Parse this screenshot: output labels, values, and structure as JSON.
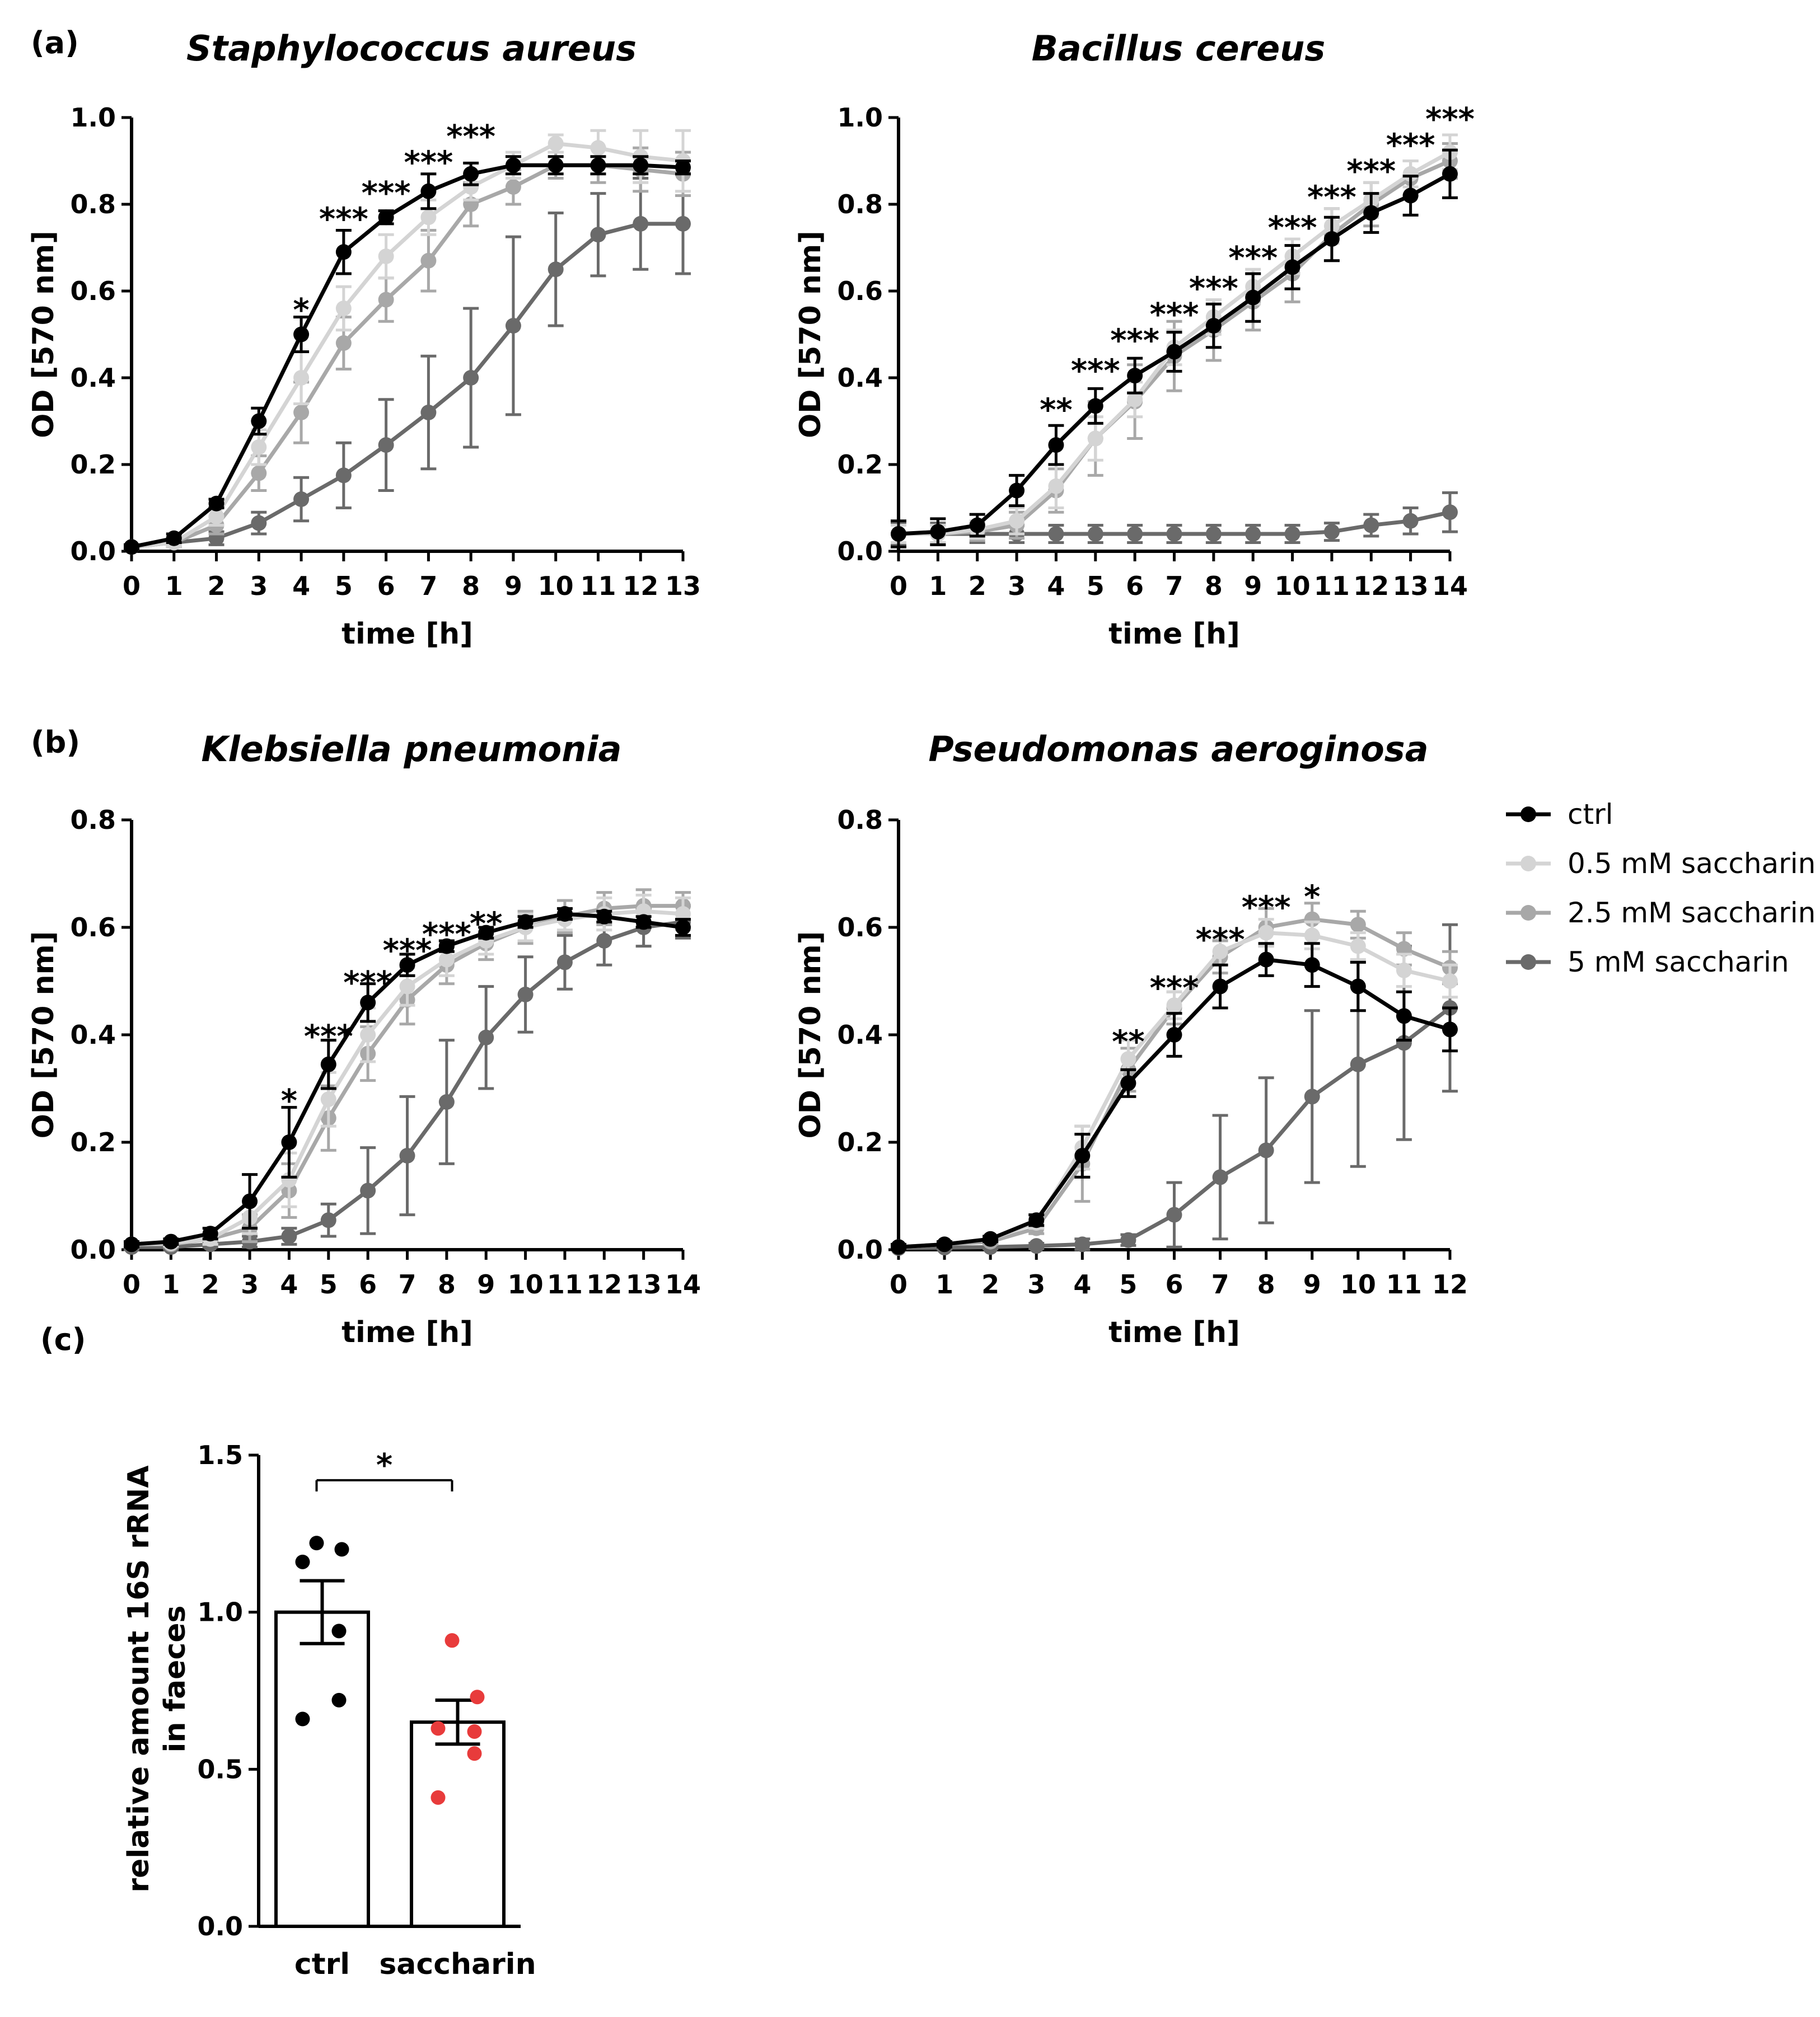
{
  "panel_labels": [
    "(a)",
    "(b)",
    "(c)"
  ],
  "colors": {
    "ctrl": "#000000",
    "s05": "#d4d4d4",
    "s25": "#a8a8a8",
    "s5": "#6a6a6a",
    "dots_saccharin": "#e83b3b"
  },
  "legend": {
    "items": [
      {
        "label": "ctrl",
        "series": "ctrl"
      },
      {
        "label": "0.5 mM saccharin",
        "series": "s05"
      },
      {
        "label": "2.5 mM saccharin",
        "series": "s25"
      },
      {
        "label": "5 mM saccharin",
        "series": "s5"
      }
    ]
  },
  "chart_data": [
    {
      "type": "line",
      "title": "Staphylococcus aureus",
      "xlabel": "time [h]",
      "ylabel": "OD [570 nm]",
      "xlim": [
        0,
        13
      ],
      "ylim": [
        0,
        1.0
      ],
      "xticks": [
        0,
        1,
        2,
        3,
        4,
        5,
        6,
        7,
        8,
        9,
        10,
        11,
        12,
        13
      ],
      "yticks": [
        0.0,
        0.2,
        0.4,
        0.6,
        0.8,
        1.0
      ],
      "ytick_labels": [
        "0.0",
        "0.2",
        "0.4",
        "0.6",
        "0.8",
        "1.0"
      ],
      "x": [
        0,
        1,
        2,
        3,
        4,
        5,
        6,
        7,
        8,
        9,
        10,
        11,
        12,
        13
      ],
      "series": [
        {
          "name": "ctrl",
          "key": "ctrl",
          "values": [
            0.01,
            0.03,
            0.11,
            0.3,
            0.5,
            0.69,
            0.77,
            0.83,
            0.87,
            0.89,
            0.89,
            0.89,
            0.89,
            0.885
          ],
          "err": [
            0.005,
            0.01,
            0.01,
            0.03,
            0.04,
            0.05,
            0.015,
            0.04,
            0.025,
            0.02,
            0.02,
            0.02,
            0.02,
            0.015
          ]
        },
        {
          "name": "0.5 mM saccharin",
          "key": "s05",
          "values": [
            0.01,
            0.02,
            0.08,
            0.24,
            0.4,
            0.56,
            0.68,
            0.77,
            0.84,
            0.89,
            0.94,
            0.93,
            0.91,
            0.9
          ],
          "err": [
            0.005,
            0.01,
            0.02,
            0.04,
            0.06,
            0.05,
            0.05,
            0.04,
            0.03,
            0.03,
            0.02,
            0.04,
            0.06,
            0.07
          ]
        },
        {
          "name": "2.5 mM saccharin",
          "key": "s25",
          "values": [
            0.01,
            0.02,
            0.06,
            0.18,
            0.32,
            0.48,
            0.58,
            0.67,
            0.8,
            0.84,
            0.89,
            0.89,
            0.88,
            0.87
          ],
          "err": [
            0.005,
            0.01,
            0.02,
            0.04,
            0.07,
            0.06,
            0.05,
            0.07,
            0.05,
            0.04,
            0.03,
            0.04,
            0.05,
            0.05
          ]
        },
        {
          "name": "5 mM saccharin",
          "key": "s5",
          "values": [
            0.01,
            0.02,
            0.03,
            0.065,
            0.12,
            0.175,
            0.245,
            0.32,
            0.4,
            0.52,
            0.65,
            0.73,
            0.755,
            0.755
          ],
          "err": [
            0.005,
            0.01,
            0.015,
            0.025,
            0.05,
            0.075,
            0.105,
            0.13,
            0.16,
            0.205,
            0.13,
            0.095,
            0.105,
            0.115
          ]
        }
      ],
      "annotations": [
        {
          "x": 4,
          "y": 0.56,
          "text": "*"
        },
        {
          "x": 5,
          "y": 0.77,
          "text": "***"
        },
        {
          "x": 6,
          "y": 0.83,
          "text": "***"
        },
        {
          "x": 7,
          "y": 0.9,
          "text": "***"
        },
        {
          "x": 8,
          "y": 0.96,
          "text": "***"
        }
      ]
    },
    {
      "type": "line",
      "title": "Bacillus cereus",
      "xlabel": "time [h]",
      "ylabel": "OD [570 nm]",
      "xlim": [
        0,
        14
      ],
      "ylim": [
        0,
        1.0
      ],
      "xticks": [
        0,
        1,
        2,
        3,
        4,
        5,
        6,
        7,
        8,
        9,
        10,
        11,
        12,
        13,
        14
      ],
      "yticks": [
        0.0,
        0.2,
        0.4,
        0.6,
        0.8,
        1.0
      ],
      "ytick_labels": [
        "0.0",
        "0.2",
        "0.4",
        "0.6",
        "0.8",
        "1.0"
      ],
      "x": [
        0,
        1,
        2,
        3,
        4,
        5,
        6,
        7,
        8,
        9,
        10,
        11,
        12,
        13,
        14
      ],
      "series": [
        {
          "name": "ctrl",
          "key": "ctrl",
          "values": [
            0.04,
            0.045,
            0.06,
            0.14,
            0.245,
            0.335,
            0.405,
            0.46,
            0.52,
            0.585,
            0.655,
            0.72,
            0.78,
            0.82,
            0.87
          ],
          "err": [
            0.03,
            0.03,
            0.025,
            0.035,
            0.045,
            0.04,
            0.04,
            0.045,
            0.05,
            0.055,
            0.05,
            0.05,
            0.045,
            0.045,
            0.055
          ]
        },
        {
          "name": "0.5 mM saccharin",
          "key": "s05",
          "values": [
            0.04,
            0.04,
            0.05,
            0.07,
            0.15,
            0.26,
            0.35,
            0.47,
            0.54,
            0.61,
            0.68,
            0.75,
            0.81,
            0.87,
            0.92
          ],
          "err": [
            0.02,
            0.02,
            0.02,
            0.03,
            0.05,
            0.05,
            0.04,
            0.04,
            0.04,
            0.04,
            0.04,
            0.04,
            0.04,
            0.03,
            0.04
          ]
        },
        {
          "name": "2.5 mM saccharin",
          "key": "s25",
          "values": [
            0.04,
            0.04,
            0.045,
            0.06,
            0.14,
            0.26,
            0.345,
            0.45,
            0.51,
            0.575,
            0.64,
            0.73,
            0.8,
            0.86,
            0.9
          ],
          "err": [
            0.02,
            0.02,
            0.02,
            0.03,
            0.05,
            0.085,
            0.085,
            0.08,
            0.07,
            0.065,
            0.065,
            0.06,
            0.05,
            0.04,
            0.04
          ]
        },
        {
          "name": "5 mM saccharin",
          "key": "s5",
          "values": [
            0.04,
            0.04,
            0.04,
            0.04,
            0.04,
            0.04,
            0.04,
            0.04,
            0.04,
            0.04,
            0.04,
            0.045,
            0.06,
            0.07,
            0.09
          ],
          "err": [
            0.025,
            0.025,
            0.02,
            0.02,
            0.02,
            0.02,
            0.02,
            0.02,
            0.02,
            0.02,
            0.02,
            0.02,
            0.025,
            0.03,
            0.045
          ]
        }
      ],
      "annotations": [
        {
          "x": 4,
          "y": 0.33,
          "text": "**"
        },
        {
          "x": 5,
          "y": 0.42,
          "text": "***"
        },
        {
          "x": 6,
          "y": 0.49,
          "text": "***"
        },
        {
          "x": 7,
          "y": 0.55,
          "text": "***"
        },
        {
          "x": 8,
          "y": 0.61,
          "text": "***"
        },
        {
          "x": 9,
          "y": 0.68,
          "text": "***"
        },
        {
          "x": 10,
          "y": 0.75,
          "text": "***"
        },
        {
          "x": 11,
          "y": 0.82,
          "text": "***"
        },
        {
          "x": 12,
          "y": 0.88,
          "text": "***"
        },
        {
          "x": 13,
          "y": 0.94,
          "text": "***"
        },
        {
          "x": 14,
          "y": 1.0,
          "text": "***"
        }
      ]
    },
    {
      "type": "line",
      "title": "Klebsiella pneumonia",
      "xlabel": "time [h]",
      "ylabel": "OD [570 nm]",
      "xlim": [
        0,
        14
      ],
      "ylim": [
        0,
        0.8
      ],
      "xticks": [
        0,
        1,
        2,
        3,
        4,
        5,
        6,
        7,
        8,
        9,
        10,
        11,
        12,
        13,
        14
      ],
      "yticks": [
        0.0,
        0.2,
        0.4,
        0.6,
        0.8
      ],
      "ytick_labels": [
        "0.0",
        "0.2",
        "0.4",
        "0.6",
        "0.8"
      ],
      "x": [
        0,
        1,
        2,
        3,
        4,
        5,
        6,
        7,
        8,
        9,
        10,
        11,
        12,
        13,
        14
      ],
      "series": [
        {
          "name": "ctrl",
          "key": "ctrl",
          "values": [
            0.01,
            0.015,
            0.03,
            0.09,
            0.2,
            0.345,
            0.46,
            0.53,
            0.565,
            0.59,
            0.61,
            0.625,
            0.62,
            0.61,
            0.6
          ],
          "err": [
            0.005,
            0.005,
            0.01,
            0.05,
            0.065,
            0.045,
            0.035,
            0.02,
            0.01,
            0.01,
            0.01,
            0.01,
            0.01,
            0.01,
            0.015
          ]
        },
        {
          "name": "0.5 mM saccharin",
          "key": "s05",
          "values": [
            0.01,
            0.012,
            0.02,
            0.06,
            0.13,
            0.28,
            0.4,
            0.49,
            0.54,
            0.575,
            0.6,
            0.615,
            0.625,
            0.63,
            0.625
          ],
          "err": [
            0.005,
            0.005,
            0.01,
            0.03,
            0.05,
            0.05,
            0.05,
            0.035,
            0.03,
            0.025,
            0.025,
            0.02,
            0.03,
            0.03,
            0.03
          ]
        },
        {
          "name": "2.5 mM saccharin",
          "key": "s25",
          "values": [
            0.01,
            0.01,
            0.02,
            0.04,
            0.11,
            0.245,
            0.365,
            0.465,
            0.53,
            0.57,
            0.6,
            0.62,
            0.635,
            0.64,
            0.64
          ],
          "err": [
            0.005,
            0.005,
            0.01,
            0.025,
            0.05,
            0.06,
            0.05,
            0.045,
            0.035,
            0.03,
            0.03,
            0.03,
            0.03,
            0.03,
            0.025
          ]
        },
        {
          "name": "5 mM saccharin",
          "key": "s5",
          "values": [
            0.005,
            0.005,
            0.01,
            0.015,
            0.025,
            0.055,
            0.11,
            0.175,
            0.275,
            0.395,
            0.475,
            0.535,
            0.575,
            0.6,
            0.61
          ],
          "err": [
            0.005,
            0.005,
            0.005,
            0.01,
            0.015,
            0.03,
            0.08,
            0.11,
            0.115,
            0.095,
            0.07,
            0.05,
            0.045,
            0.035,
            0.03
          ]
        }
      ],
      "annotations": [
        {
          "x": 4,
          "y": 0.28,
          "text": "*"
        },
        {
          "x": 5,
          "y": 0.4,
          "text": "***"
        },
        {
          "x": 6,
          "y": 0.5,
          "text": "***"
        },
        {
          "x": 7,
          "y": 0.56,
          "text": "***"
        },
        {
          "x": 8,
          "y": 0.59,
          "text": "***"
        },
        {
          "x": 9,
          "y": 0.61,
          "text": "**"
        }
      ]
    },
    {
      "type": "line",
      "title": "Pseudomonas aeroginosa",
      "xlabel": "time [h]",
      "ylabel": "OD [570 nm]",
      "xlim": [
        0,
        12
      ],
      "ylim": [
        0,
        0.8
      ],
      "xticks": [
        0,
        1,
        2,
        3,
        4,
        5,
        6,
        7,
        8,
        9,
        10,
        11,
        12
      ],
      "yticks": [
        0.0,
        0.2,
        0.4,
        0.6,
        0.8
      ],
      "ytick_labels": [
        "0.0",
        "0.2",
        "0.4",
        "0.6",
        "0.8"
      ],
      "x": [
        0,
        1,
        2,
        3,
        4,
        5,
        6,
        7,
        8,
        9,
        10,
        11,
        12
      ],
      "series": [
        {
          "name": "ctrl",
          "key": "ctrl",
          "values": [
            0.005,
            0.01,
            0.02,
            0.055,
            0.175,
            0.31,
            0.4,
            0.49,
            0.54,
            0.53,
            0.49,
            0.435,
            0.41
          ],
          "err": [
            0.005,
            0.005,
            0.005,
            0.01,
            0.04,
            0.025,
            0.04,
            0.04,
            0.03,
            0.04,
            0.045,
            0.045,
            0.04
          ]
        },
        {
          "name": "0.5 mM saccharin",
          "key": "s05",
          "values": [
            0.005,
            0.01,
            0.02,
            0.05,
            0.19,
            0.355,
            0.455,
            0.555,
            0.59,
            0.585,
            0.565,
            0.52,
            0.5
          ],
          "err": [
            0.005,
            0.005,
            0.005,
            0.01,
            0.04,
            0.035,
            0.025,
            0.025,
            0.025,
            0.025,
            0.025,
            0.03,
            0.03
          ]
        },
        {
          "name": "2.5 mM saccharin",
          "key": "s25",
          "values": [
            0.005,
            0.01,
            0.015,
            0.04,
            0.16,
            0.335,
            0.45,
            0.545,
            0.6,
            0.615,
            0.605,
            0.56,
            0.525
          ],
          "err": [
            0.005,
            0.005,
            0.005,
            0.01,
            0.07,
            0.04,
            0.03,
            0.03,
            0.035,
            0.03,
            0.025,
            0.03,
            0.03
          ]
        },
        {
          "name": "5 mM saccharin",
          "key": "s5",
          "values": [
            0.003,
            0.004,
            0.005,
            0.007,
            0.01,
            0.018,
            0.065,
            0.135,
            0.185,
            0.285,
            0.345,
            0.385,
            0.45
          ],
          "err": [
            0.003,
            0.003,
            0.003,
            0.005,
            0.01,
            0.01,
            0.06,
            0.115,
            0.135,
            0.16,
            0.19,
            0.18,
            0.155
          ]
        }
      ],
      "annotations": [
        {
          "x": 5,
          "y": 0.39,
          "text": "**"
        },
        {
          "x": 6,
          "y": 0.49,
          "text": "***"
        },
        {
          "x": 7,
          "y": 0.58,
          "text": "***"
        },
        {
          "x": 8,
          "y": 0.64,
          "text": "***"
        },
        {
          "x": 9,
          "y": 0.66,
          "text": "*"
        }
      ]
    },
    {
      "type": "bar",
      "xlabel": "",
      "ylabel": "relative amount 16S rRNA\nin faeces",
      "ylabel_lines": [
        "relative amount 16S rRNA",
        "in faeces"
      ],
      "ylim": [
        0,
        1.5
      ],
      "yticks": [
        0.0,
        0.5,
        1.0,
        1.5
      ],
      "ytick_labels": [
        "0.0",
        "0.5",
        "1.0",
        "1.5"
      ],
      "categories": [
        "ctrl",
        "saccharin"
      ],
      "values": [
        1.0,
        0.65
      ],
      "sem": [
        0.1,
        0.07
      ],
      "points": [
        [
          1.22,
          1.2,
          1.16,
          0.94,
          0.72,
          0.66
        ],
        [
          0.91,
          0.73,
          0.63,
          0.62,
          0.55,
          0.41
        ]
      ],
      "significance": {
        "between": [
          0,
          1
        ],
        "y": 1.42,
        "text": "*"
      }
    }
  ]
}
